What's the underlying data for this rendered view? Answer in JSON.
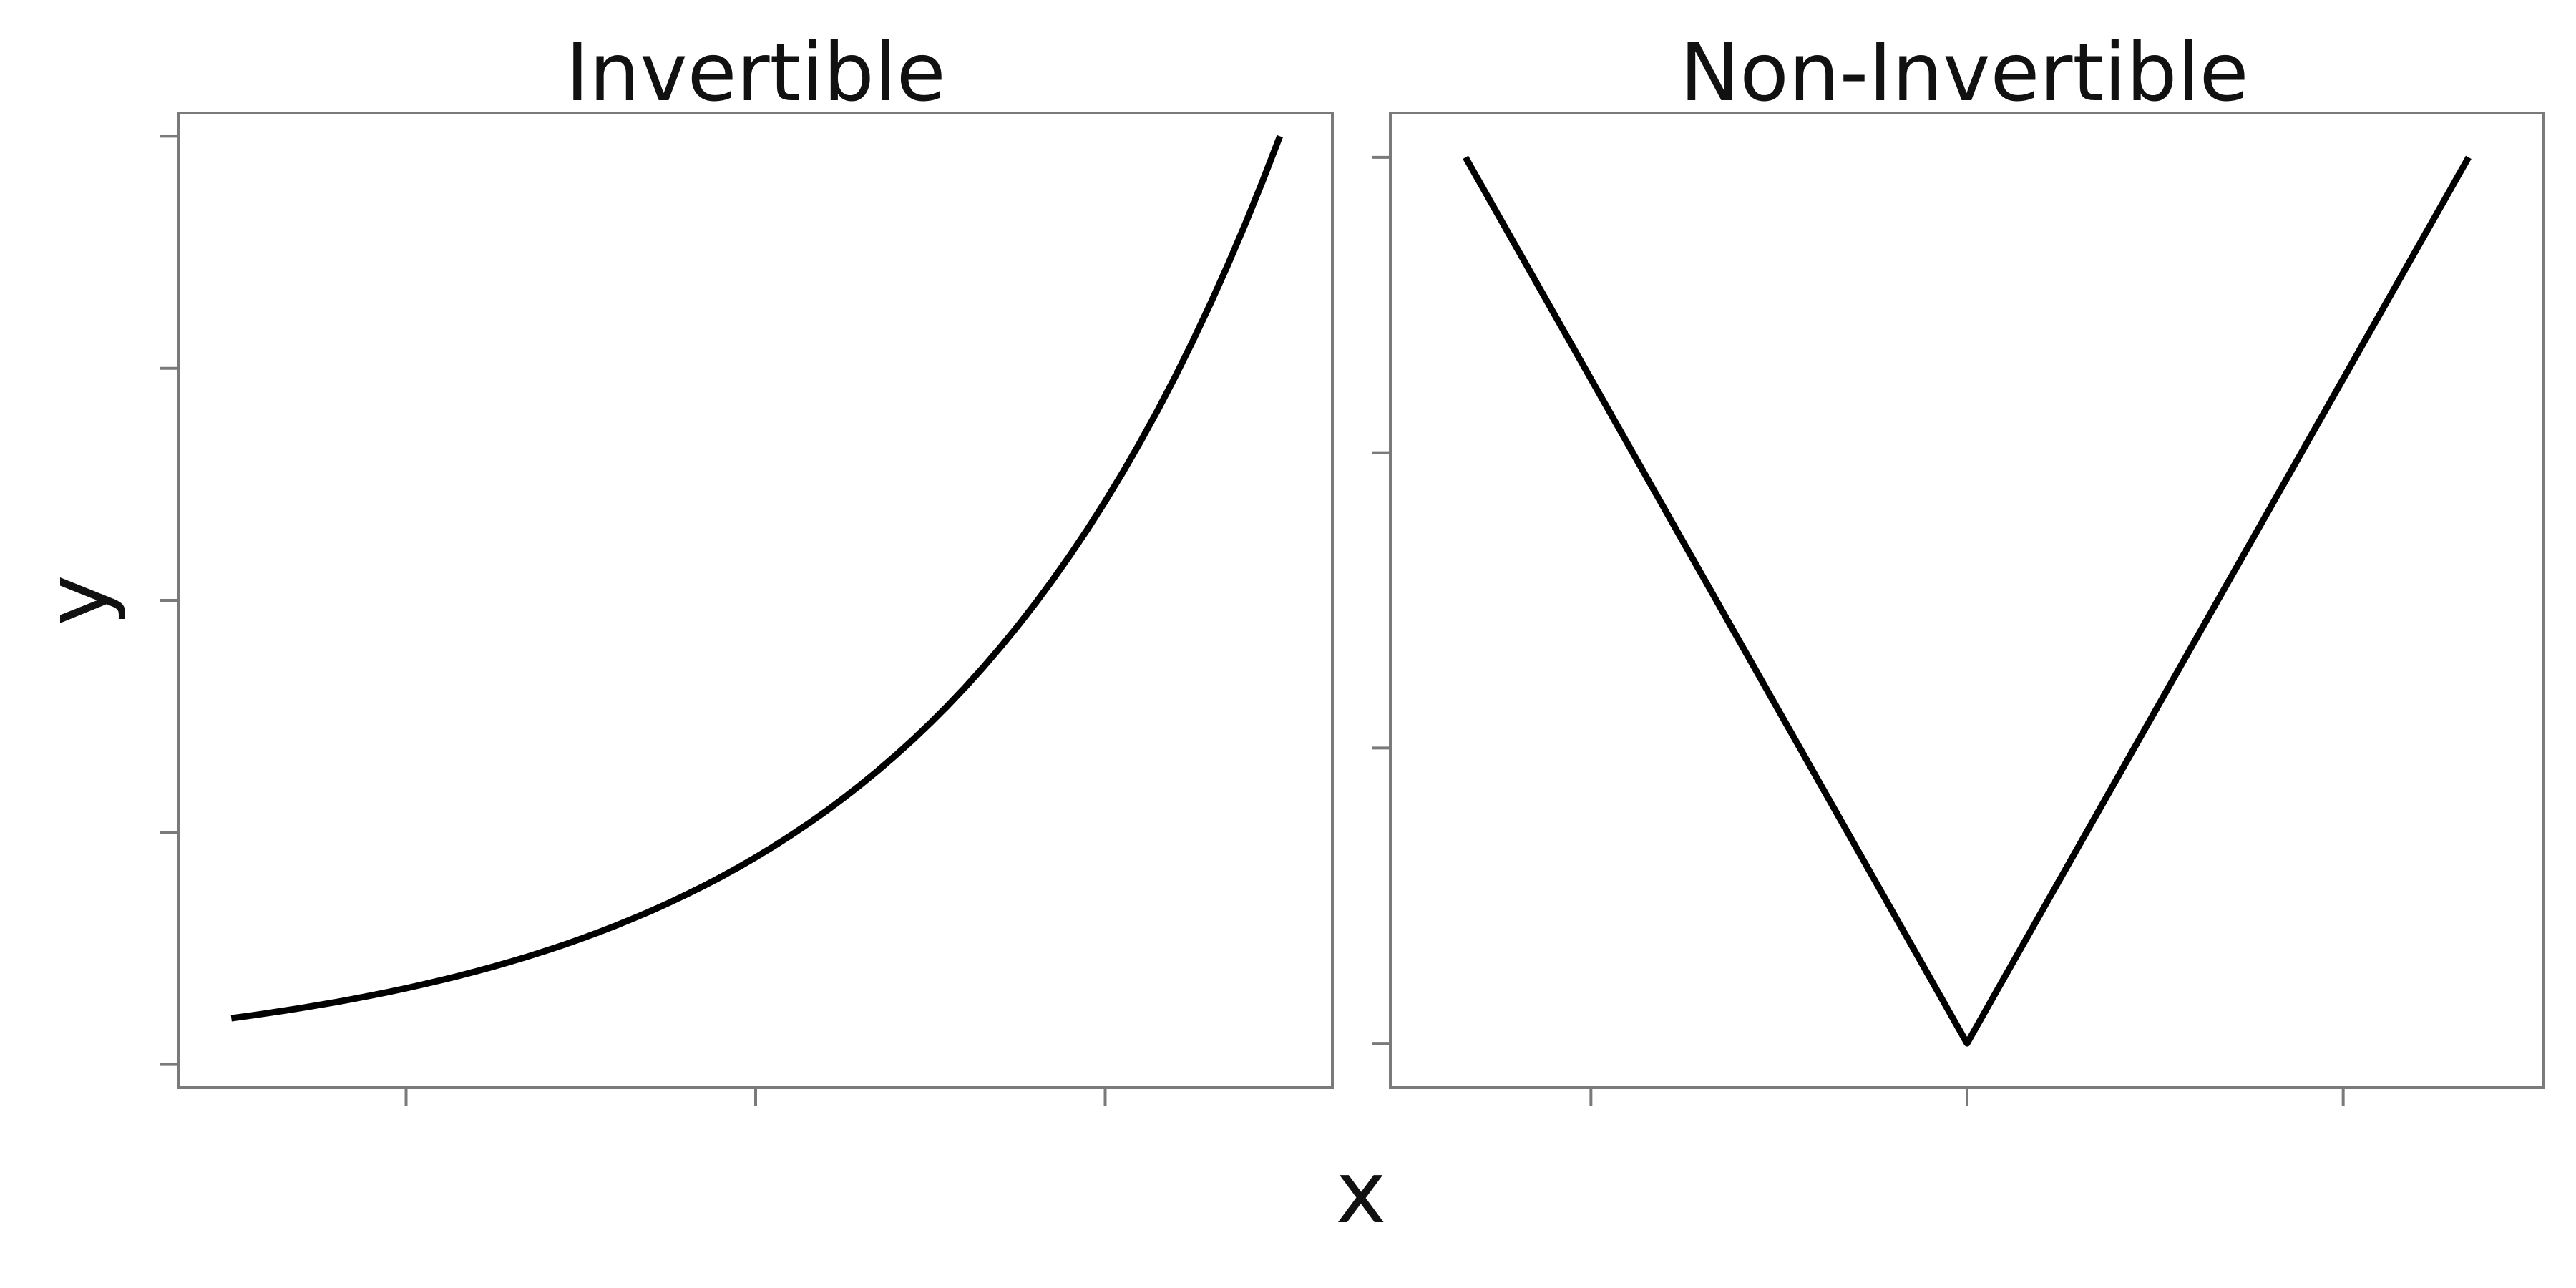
{
  "chart_data": [
    {
      "type": "line",
      "title": "Invertible",
      "xlabel": "x",
      "ylabel": "y",
      "xlim": [
        -0.15,
        3.15
      ],
      "ylim": [
        -0.1,
        4.1
      ],
      "x_ticks": [
        0.5,
        1.5,
        2.5
      ],
      "y_ticks": [
        0,
        1,
        2,
        3,
        4
      ],
      "x_tick_labels": [],
      "y_tick_labels": [],
      "grid": false,
      "series": [
        {
          "color": "#000000",
          "function": "exp",
          "x_range": [
            0,
            3
          ],
          "samples": 61
        }
      ]
    },
    {
      "type": "line",
      "title": "Non-Invertible",
      "xlabel": "x",
      "ylabel": "y",
      "xlim": [
        -1.15,
        1.15
      ],
      "ylim": [
        -0.15,
        3.15
      ],
      "x_ticks": [
        -0.75,
        0,
        0.75
      ],
      "y_ticks": [
        0,
        1,
        2,
        3
      ],
      "x_tick_labels": [],
      "y_tick_labels": [],
      "grid": false,
      "series": [
        {
          "color": "#000000",
          "x": [
            -1,
            0,
            1
          ],
          "y": [
            3,
            0,
            3
          ]
        }
      ]
    }
  ]
}
